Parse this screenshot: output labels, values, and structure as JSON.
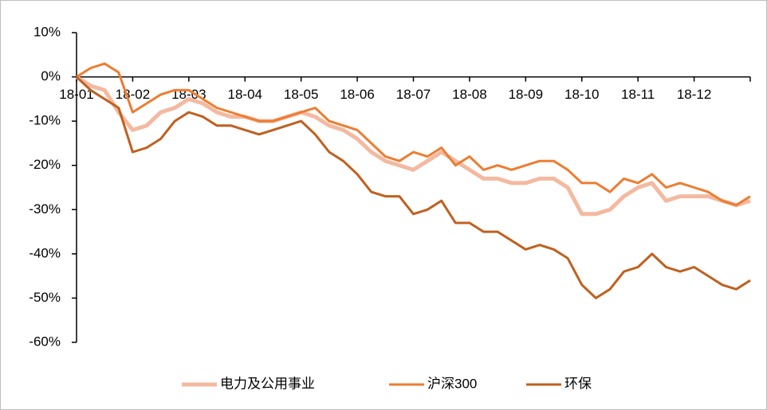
{
  "chart_data": {
    "type": "line",
    "categories": [
      "18-01",
      null,
      null,
      null,
      "18-02",
      null,
      null,
      null,
      "18-03",
      null,
      null,
      null,
      "18-04",
      null,
      null,
      null,
      "18-05",
      null,
      null,
      null,
      "18-06",
      null,
      null,
      null,
      "18-07",
      null,
      null,
      null,
      "18-08",
      null,
      null,
      null,
      "18-09",
      null,
      null,
      null,
      "18-10",
      null,
      null,
      null,
      "18-11",
      null,
      null,
      null,
      "18-12",
      null,
      null,
      null,
      null
    ],
    "series": [
      {
        "name": "电力及公用事业",
        "color": "#f4b9a0",
        "values": [
          0,
          -2,
          -3,
          -8,
          -12,
          -11,
          -8,
          -7,
          -5,
          -6,
          -8,
          -9,
          -9,
          -10,
          -10,
          -9,
          -8,
          -9,
          -11,
          -12,
          -14,
          -17,
          -19,
          -20,
          -21,
          -19,
          -17,
          -19,
          -21,
          -23,
          -23,
          -24,
          -24,
          -23,
          -23,
          -25,
          -31,
          -31,
          -30,
          -27,
          -25,
          -24,
          -28,
          -27,
          -27,
          -27,
          -28,
          -29,
          -28
        ]
      },
      {
        "name": "沪深300",
        "color": "#ed7d31",
        "values": [
          0,
          2,
          3,
          1,
          -8,
          -6,
          -4,
          -3,
          -3,
          -5,
          -7,
          -8,
          -9,
          -10,
          -10,
          -9,
          -8,
          -7,
          -10,
          -11,
          -12,
          -15,
          -18,
          -19,
          -17,
          -18,
          -16,
          -20,
          -18,
          -21,
          -20,
          -21,
          -20,
          -19,
          -19,
          -21,
          -24,
          -24,
          -26,
          -23,
          -24,
          -22,
          -25,
          -24,
          -25,
          -26,
          -28,
          -29,
          -27
        ]
      },
      {
        "name": "环保",
        "color": "#c0601f",
        "values": [
          0,
          -3,
          -5,
          -7,
          -17,
          -16,
          -14,
          -10,
          -8,
          -9,
          -11,
          -11,
          -12,
          -13,
          -12,
          -11,
          -10,
          -13,
          -17,
          -19,
          -22,
          -26,
          -27,
          -27,
          -31,
          -30,
          -28,
          -33,
          -33,
          -35,
          -35,
          -37,
          -39,
          -38,
          -39,
          -41,
          -47,
          -50,
          -48,
          -44,
          -43,
          -40,
          -43,
          -44,
          -43,
          -45,
          -47,
          -48,
          -46
        ]
      }
    ],
    "ylim": [
      -60,
      10
    ],
    "yticks": [
      {
        "value": 10,
        "label": "10%"
      },
      {
        "value": 0,
        "label": "0%"
      },
      {
        "value": -10,
        "label": "-10%"
      },
      {
        "value": -20,
        "label": "-20%"
      },
      {
        "value": -30,
        "label": "-30%"
      },
      {
        "value": -40,
        "label": "-40%"
      },
      {
        "value": -50,
        "label": "-50%"
      },
      {
        "value": -60,
        "label": "-60%"
      }
    ],
    "legend": "bottom"
  }
}
